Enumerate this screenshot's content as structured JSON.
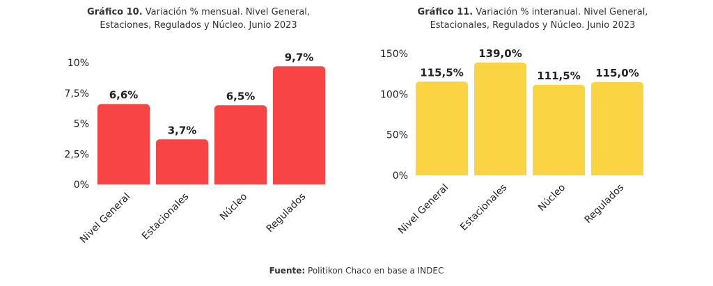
{
  "charts": [
    {
      "title_bold": "Gráfico 10.",
      "title_rest_line1": "Variación % mensual. Nivel General,",
      "title_line2": "Estaciones, Regulados y Núcleo. Junio 2023"
    },
    {
      "title_bold": "Gráfico 11.",
      "title_rest_line1": "Variación % interanual. Nivel General,",
      "title_line2": "Estacionales, Regulados y Núcleo. Junio 2023"
    }
  ],
  "source": {
    "label": "Fuente:",
    "text": "Politikon Chaco en base a INDEC"
  },
  "chart_data": [
    {
      "type": "bar",
      "categories": [
        "Nivel General",
        "Estacionales",
        "Núcleo",
        "Regulados"
      ],
      "values": [
        6.6,
        3.7,
        6.5,
        9.7
      ],
      "data_labels": [
        "6,6%",
        "3,7%",
        "6,5%",
        "9,7%"
      ],
      "yticks": [
        0,
        2.5,
        5,
        7.5,
        10
      ],
      "ytick_labels": [
        "0%",
        "2,5%",
        "5%",
        "7,5%",
        "10%"
      ],
      "ylim": [
        0,
        10
      ],
      "color": "#f84444",
      "grid": false
    },
    {
      "type": "bar",
      "categories": [
        "Nivel General",
        "Estacionales",
        "Núcleo",
        "Regulados"
      ],
      "values": [
        115.5,
        139.0,
        111.5,
        115.0
      ],
      "data_labels": [
        "115,5%",
        "139,0%",
        "111,5%",
        "115,0%"
      ],
      "yticks": [
        0,
        50,
        100,
        150
      ],
      "ytick_labels": [
        "0%",
        "50%",
        "100%",
        "150%"
      ],
      "ylim": [
        0,
        150
      ],
      "color": "#fbd443",
      "grid": false
    }
  ]
}
